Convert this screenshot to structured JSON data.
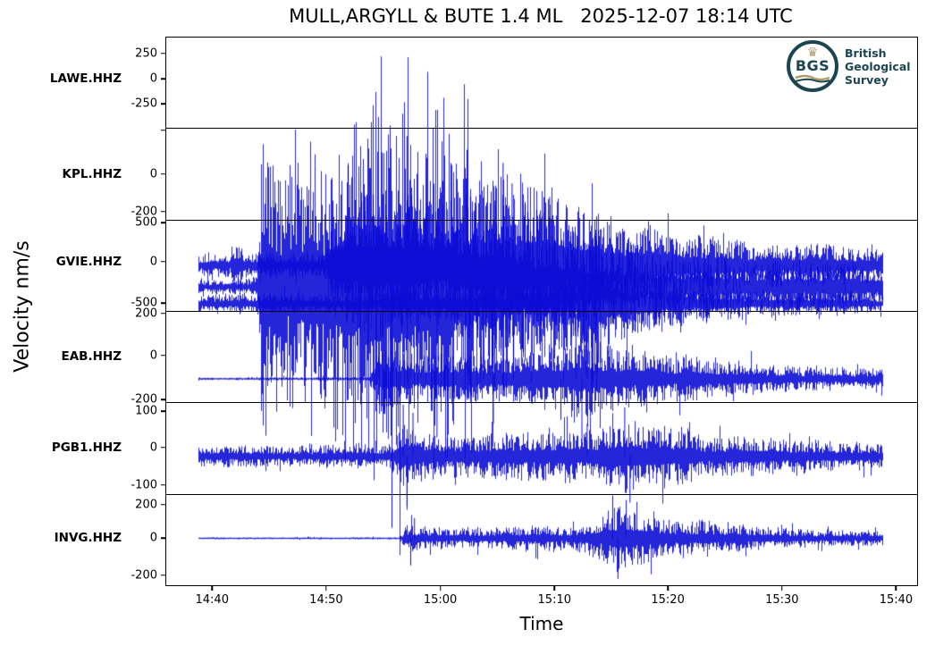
{
  "title": "MULL,ARGYLL & BUTE 1.4 ML   2025-12-07 18:14 UTC",
  "axes": {
    "ylabel": "Velocity nm/s",
    "xlabel": "Time"
  },
  "logo": {
    "abbr": "BGS",
    "crown_glyph": "♛",
    "lines": [
      "British",
      "Geological",
      "Survey"
    ],
    "teal": "#1c4552",
    "gold": "#b29b6b"
  },
  "colors": {
    "trace": "#0d0dd6",
    "axis": "#000000",
    "background": "#ffffff"
  },
  "chart_data": {
    "type": "line",
    "kind": "seismogram-multitrace",
    "title": "MULL,ARGYLL & BUTE 1.4 ML   2025-12-07 18:14 UTC",
    "xlabel": "Time",
    "ylabel": "Velocity nm/s",
    "grid": false,
    "legend": "none",
    "x_ticks": [
      {
        "pos": 0.061,
        "label": "14:40"
      },
      {
        "pos": 0.213,
        "label": "14:50"
      },
      {
        "pos": 0.365,
        "label": "15:00"
      },
      {
        "pos": 0.517,
        "label": "15:10"
      },
      {
        "pos": 0.668,
        "label": "15:20"
      },
      {
        "pos": 0.82,
        "label": "15:30"
      },
      {
        "pos": 0.972,
        "label": "15:40"
      }
    ],
    "trace_start": 0.043,
    "trace_end": 0.954,
    "series": [
      {
        "station": "LAWE.HHZ",
        "seed": 42,
        "baseline": 0.455,
        "y_ticks": [
          {
            "pos": 0.175,
            "label": "250"
          },
          {
            "pos": 0.455,
            "label": "0"
          },
          {
            "pos": 0.735,
            "label": "-250"
          }
        ],
        "envelope": [
          [
            0.043,
            0.02
          ],
          [
            0.12,
            0.025
          ],
          [
            0.127,
            0.38
          ],
          [
            0.16,
            0.3
          ],
          [
            0.2,
            0.32
          ],
          [
            0.24,
            0.42
          ],
          [
            0.28,
            0.48
          ],
          [
            0.305,
            0.52
          ],
          [
            0.33,
            0.42
          ],
          [
            0.36,
            0.46
          ],
          [
            0.4,
            0.38
          ],
          [
            0.44,
            0.3
          ],
          [
            0.5,
            0.22
          ],
          [
            0.58,
            0.13
          ],
          [
            0.65,
            0.09
          ],
          [
            0.75,
            0.07
          ],
          [
            0.85,
            0.065
          ],
          [
            0.954,
            0.06
          ]
        ],
        "spikes": [
          [
            0.3,
            -0.88
          ],
          [
            0.282,
            0.62
          ],
          [
            0.32,
            0.55
          ],
          [
            0.36,
            -0.55
          ],
          [
            0.4,
            0.5
          ],
          [
            0.435,
            -0.5
          ]
        ]
      },
      {
        "station": "KPL.HHZ",
        "seed": 1019,
        "baseline": 0.5,
        "y_ticks": [
          {
            "pos": 0.012,
            "label": ""
          },
          {
            "pos": 0.5,
            "label": "0"
          },
          {
            "pos": 0.912,
            "label": "-200"
          }
        ],
        "envelope": [
          [
            0.043,
            0.05
          ],
          [
            0.088,
            0.06
          ],
          [
            0.095,
            0.13
          ],
          [
            0.102,
            0.06
          ],
          [
            0.21,
            0.06
          ],
          [
            0.225,
            0.3
          ],
          [
            0.26,
            0.35
          ],
          [
            0.3,
            0.38
          ],
          [
            0.34,
            0.3
          ],
          [
            0.38,
            0.35
          ],
          [
            0.42,
            0.45
          ],
          [
            0.445,
            0.55
          ],
          [
            0.47,
            0.42
          ],
          [
            0.52,
            0.38
          ],
          [
            0.56,
            0.28
          ],
          [
            0.62,
            0.22
          ],
          [
            0.7,
            0.16
          ],
          [
            0.8,
            0.12
          ],
          [
            0.9,
            0.1
          ],
          [
            0.954,
            0.1
          ]
        ],
        "spikes": [
          [
            0.437,
            -0.92
          ],
          [
            0.448,
            0.75
          ],
          [
            0.46,
            0.6
          ],
          [
            0.298,
            -0.55
          ],
          [
            0.51,
            0.5
          ]
        ]
      },
      {
        "station": "GVIE.HHZ",
        "seed": 1996,
        "baseline": 0.455,
        "y_ticks": [
          {
            "pos": 0.025,
            "label": "500"
          },
          {
            "pos": 0.455,
            "label": "0"
          },
          {
            "pos": 0.915,
            "label": "-500"
          }
        ],
        "envelope": [
          [
            0.043,
            0.07
          ],
          [
            0.1,
            0.08
          ],
          [
            0.27,
            0.07
          ],
          [
            0.3,
            0.14
          ],
          [
            0.35,
            0.12
          ],
          [
            0.42,
            0.1
          ],
          [
            0.48,
            0.12
          ],
          [
            0.52,
            0.15
          ],
          [
            0.545,
            0.22
          ],
          [
            0.558,
            0.55
          ],
          [
            0.565,
            0.75
          ],
          [
            0.575,
            0.55
          ],
          [
            0.59,
            0.4
          ],
          [
            0.61,
            0.3
          ],
          [
            0.64,
            0.22
          ],
          [
            0.68,
            0.18
          ],
          [
            0.73,
            0.14
          ],
          [
            0.78,
            0.1
          ],
          [
            0.85,
            0.09
          ],
          [
            0.954,
            0.08
          ]
        ],
        "spikes": [
          [
            0.563,
            0.95
          ],
          [
            0.566,
            -0.92
          ],
          [
            0.572,
            0.7
          ],
          [
            0.578,
            -0.65
          ]
        ]
      },
      {
        "station": "EAB.HHZ",
        "seed": 2973,
        "baseline": 0.49,
        "y_ticks": [
          {
            "pos": 0.015,
            "label": "200"
          },
          {
            "pos": 0.48,
            "label": "0"
          },
          {
            "pos": 0.97,
            "label": "-200"
          }
        ],
        "envelope": [
          [
            0.043,
            0.015
          ],
          [
            0.27,
            0.02
          ],
          [
            0.283,
            0.32
          ],
          [
            0.31,
            0.28
          ],
          [
            0.35,
            0.26
          ],
          [
            0.4,
            0.26
          ],
          [
            0.45,
            0.28
          ],
          [
            0.5,
            0.32
          ],
          [
            0.53,
            0.42
          ],
          [
            0.55,
            0.5
          ],
          [
            0.57,
            0.42
          ],
          [
            0.6,
            0.35
          ],
          [
            0.64,
            0.3
          ],
          [
            0.68,
            0.25
          ],
          [
            0.73,
            0.2
          ],
          [
            0.8,
            0.15
          ],
          [
            0.88,
            0.12
          ],
          [
            0.954,
            0.1
          ]
        ],
        "spikes": [
          [
            0.545,
            0.95
          ],
          [
            0.553,
            -0.95
          ],
          [
            0.56,
            0.7
          ],
          [
            0.525,
            -0.6
          ],
          [
            0.3,
            0.5
          ],
          [
            0.29,
            -0.45
          ]
        ]
      },
      {
        "station": "PGB1.HHZ",
        "seed": 3950,
        "baseline": 0.49,
        "y_ticks": [
          {
            "pos": 0.088,
            "label": "100"
          },
          {
            "pos": 0.49,
            "label": "0"
          },
          {
            "pos": 0.9,
            "label": "-100"
          }
        ],
        "envelope": [
          [
            0.043,
            0.14
          ],
          [
            0.15,
            0.15
          ],
          [
            0.25,
            0.16
          ],
          [
            0.3,
            0.18
          ],
          [
            0.312,
            0.5
          ],
          [
            0.33,
            0.42
          ],
          [
            0.36,
            0.3
          ],
          [
            0.4,
            0.26
          ],
          [
            0.45,
            0.28
          ],
          [
            0.5,
            0.3
          ],
          [
            0.55,
            0.32
          ],
          [
            0.6,
            0.42
          ],
          [
            0.63,
            0.38
          ],
          [
            0.66,
            0.35
          ],
          [
            0.7,
            0.3
          ],
          [
            0.75,
            0.26
          ],
          [
            0.8,
            0.22
          ],
          [
            0.87,
            0.18
          ],
          [
            0.954,
            0.17
          ]
        ],
        "spikes": [
          [
            0.315,
            0.95
          ],
          [
            0.32,
            -0.92
          ],
          [
            0.328,
            0.8
          ],
          [
            0.61,
            0.9
          ],
          [
            0.617,
            -0.85
          ],
          [
            0.56,
            0.6
          ]
        ]
      },
      {
        "station": "INVG.HHZ",
        "seed": 4927,
        "baseline": 0.48,
        "y_ticks": [
          {
            "pos": 0.11,
            "label": "200"
          },
          {
            "pos": 0.48,
            "label": "0"
          },
          {
            "pos": 0.89,
            "label": "-200"
          }
        ],
        "envelope": [
          [
            0.043,
            0.015
          ],
          [
            0.31,
            0.02
          ],
          [
            0.322,
            0.3
          ],
          [
            0.34,
            0.18
          ],
          [
            0.38,
            0.15
          ],
          [
            0.42,
            0.16
          ],
          [
            0.46,
            0.18
          ],
          [
            0.5,
            0.2
          ],
          [
            0.54,
            0.22
          ],
          [
            0.57,
            0.3
          ],
          [
            0.59,
            0.45
          ],
          [
            0.605,
            0.5
          ],
          [
            0.62,
            0.42
          ],
          [
            0.64,
            0.38
          ],
          [
            0.66,
            0.32
          ],
          [
            0.7,
            0.28
          ],
          [
            0.74,
            0.22
          ],
          [
            0.8,
            0.18
          ],
          [
            0.87,
            0.14
          ],
          [
            0.954,
            0.12
          ]
        ],
        "spikes": [
          [
            0.594,
            0.95
          ],
          [
            0.601,
            -0.9
          ],
          [
            0.612,
            0.85
          ],
          [
            0.325,
            -0.6
          ],
          [
            0.33,
            0.45
          ]
        ]
      }
    ]
  }
}
